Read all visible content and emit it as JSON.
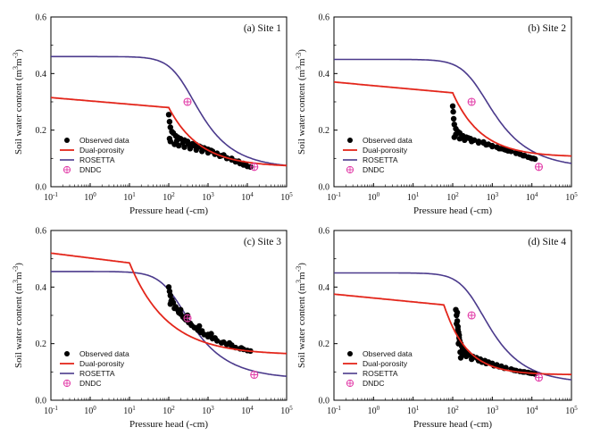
{
  "chart_data": [
    {
      "type": "scatter",
      "title": "(a) Site 1",
      "xlabel": "Pressure head (-cm)",
      "ylabel_main": "Soil water content (m",
      "ylabel_sup1": "3",
      "ylabel_mid": "m",
      "ylabel_sup2": "-3",
      "ylabel_end": ")",
      "x_scale": "log",
      "x_tick_exponents": [
        -1,
        0,
        1,
        2,
        3,
        4,
        5
      ],
      "y_ticks": [
        "0.0",
        "0.2",
        "0.4",
        "0.6"
      ],
      "ylim": [
        0,
        0.6
      ],
      "legend_position": "bottom-left",
      "legend": [
        "Observed data",
        "Dual-porosity",
        "ROSETTA",
        "DNDC"
      ],
      "colors": {
        "observed": "#000000",
        "dual": "#e3261b",
        "rosetta": "#4b3a8c",
        "dndc": "#e23ca8"
      },
      "dual_porosity": {
        "theta_r": 0.07,
        "theta_s": 0.315,
        "break_head": 100,
        "decay": 0.55
      },
      "rosetta": {
        "theta_r": 0.065,
        "theta_s": 0.46,
        "alpha": 0.0045,
        "n": 1.6
      },
      "observed": [
        [
          100,
          0.255
        ],
        [
          105,
          0.23
        ],
        [
          110,
          0.21
        ],
        [
          120,
          0.195
        ],
        [
          130,
          0.19
        ],
        [
          150,
          0.18
        ],
        [
          170,
          0.175
        ],
        [
          200,
          0.17
        ],
        [
          250,
          0.165
        ],
        [
          300,
          0.16
        ],
        [
          400,
          0.152
        ],
        [
          500,
          0.148
        ],
        [
          600,
          0.143
        ],
        [
          800,
          0.137
        ],
        [
          1000,
          0.132
        ],
        [
          1300,
          0.125
        ],
        [
          1700,
          0.118
        ],
        [
          2200,
          0.11
        ],
        [
          3000,
          0.102
        ],
        [
          4000,
          0.095
        ],
        [
          5000,
          0.088
        ],
        [
          6500,
          0.082
        ],
        [
          8000,
          0.077
        ],
        [
          10000,
          0.072
        ],
        [
          12000,
          0.07
        ],
        [
          110,
          0.16
        ],
        [
          140,
          0.15
        ],
        [
          180,
          0.145
        ],
        [
          250,
          0.14
        ],
        [
          350,
          0.135
        ],
        [
          500,
          0.13
        ],
        [
          700,
          0.125
        ],
        [
          1000,
          0.12
        ],
        [
          1500,
          0.115
        ],
        [
          2000,
          0.108
        ],
        [
          3000,
          0.1
        ],
        [
          5000,
          0.09
        ],
        [
          8000,
          0.082
        ],
        [
          105,
          0.17
        ],
        [
          160,
          0.162
        ],
        [
          230,
          0.155
        ],
        [
          320,
          0.15
        ],
        [
          450,
          0.145
        ],
        [
          650,
          0.14
        ],
        [
          900,
          0.133
        ],
        [
          1200,
          0.128
        ],
        [
          2500,
          0.112
        ],
        [
          4000,
          0.1
        ],
        [
          6000,
          0.09
        ],
        [
          9000,
          0.08
        ]
      ],
      "dndc": [
        [
          300,
          0.3
        ],
        [
          15000,
          0.07
        ]
      ]
    },
    {
      "type": "scatter",
      "title": "(b) Site 2",
      "xlabel": "Pressure head (-cm)",
      "ylabel_main": "Soil water content (m",
      "ylabel_sup1": "3",
      "ylabel_mid": "m",
      "ylabel_sup2": "-3",
      "ylabel_end": ")",
      "x_scale": "log",
      "x_tick_exponents": [
        -1,
        0,
        1,
        2,
        3,
        4,
        5
      ],
      "y_ticks": [
        "0.0",
        "0.2",
        "0.4",
        "0.6"
      ],
      "ylim": [
        0,
        0.6
      ],
      "legend_position": "bottom-left",
      "legend": [
        "Observed data",
        "Dual-porosity",
        "ROSETTA",
        "DNDC"
      ],
      "colors": {
        "observed": "#000000",
        "dual": "#e3261b",
        "rosetta": "#4b3a8c",
        "dndc": "#e23ca8"
      },
      "dual_porosity": {
        "theta_r": 0.105,
        "theta_s": 0.37,
        "break_head": 100,
        "decay": 0.6
      },
      "rosetta": {
        "theta_r": 0.065,
        "theta_s": 0.45,
        "alpha": 0.0028,
        "n": 1.55
      },
      "observed": [
        [
          100,
          0.285
        ],
        [
          103,
          0.265
        ],
        [
          106,
          0.24
        ],
        [
          110,
          0.22
        ],
        [
          120,
          0.205
        ],
        [
          135,
          0.195
        ],
        [
          150,
          0.19
        ],
        [
          180,
          0.18
        ],
        [
          220,
          0.175
        ],
        [
          280,
          0.17
        ],
        [
          350,
          0.165
        ],
        [
          450,
          0.16
        ],
        [
          600,
          0.155
        ],
        [
          800,
          0.15
        ],
        [
          1000,
          0.145
        ],
        [
          1300,
          0.14
        ],
        [
          1700,
          0.135
        ],
        [
          2200,
          0.13
        ],
        [
          3000,
          0.125
        ],
        [
          4000,
          0.12
        ],
        [
          5000,
          0.115
        ],
        [
          6500,
          0.11
        ],
        [
          8000,
          0.105
        ],
        [
          10000,
          0.1
        ],
        [
          12000,
          0.098
        ],
        [
          110,
          0.175
        ],
        [
          150,
          0.17
        ],
        [
          200,
          0.165
        ],
        [
          300,
          0.16
        ],
        [
          450,
          0.155
        ],
        [
          700,
          0.148
        ],
        [
          1000,
          0.142
        ],
        [
          1500,
          0.135
        ],
        [
          2500,
          0.127
        ],
        [
          4000,
          0.118
        ],
        [
          6000,
          0.11
        ],
        [
          9000,
          0.103
        ],
        [
          120,
          0.185
        ],
        [
          250,
          0.172
        ],
        [
          600,
          0.158
        ],
        [
          2000,
          0.132
        ],
        [
          5000,
          0.116
        ],
        [
          11000,
          0.1
        ]
      ],
      "dndc": [
        [
          300,
          0.3
        ],
        [
          15000,
          0.07
        ]
      ]
    },
    {
      "type": "scatter",
      "title": "(c) Site 3",
      "xlabel": "Pressure head (-cm)",
      "ylabel_main": "Soil water content (m",
      "ylabel_sup1": "3",
      "ylabel_mid": "m",
      "ylabel_sup2": "-3",
      "ylabel_end": ")",
      "x_scale": "log",
      "x_tick_exponents": [
        -1,
        0,
        1,
        2,
        3,
        4,
        5
      ],
      "y_ticks": [
        "0.0",
        "0.2",
        "0.4",
        "0.6"
      ],
      "ylim": [
        0,
        0.6
      ],
      "legend_position": "bottom-left",
      "legend": [
        "Observed data",
        "Dual-porosity",
        "ROSETTA",
        "DNDC"
      ],
      "colors": {
        "observed": "#000000",
        "dual": "#e3261b",
        "rosetta": "#4b3a8c",
        "dndc": "#e23ca8"
      },
      "dual_porosity": {
        "theta_r": 0.16,
        "theta_s": 0.52,
        "break_head": 10,
        "decay": 0.45
      },
      "rosetta": {
        "theta_r": 0.075,
        "theta_s": 0.455,
        "alpha": 0.008,
        "n": 1.55
      },
      "observed": [
        [
          100,
          0.4
        ],
        [
          105,
          0.385
        ],
        [
          110,
          0.37
        ],
        [
          120,
          0.355
        ],
        [
          130,
          0.345
        ],
        [
          150,
          0.33
        ],
        [
          170,
          0.32
        ],
        [
          200,
          0.305
        ],
        [
          230,
          0.295
        ],
        [
          270,
          0.285
        ],
        [
          320,
          0.275
        ],
        [
          380,
          0.265
        ],
        [
          450,
          0.257
        ],
        [
          550,
          0.248
        ],
        [
          650,
          0.24
        ],
        [
          800,
          0.232
        ],
        [
          1000,
          0.225
        ],
        [
          1300,
          0.218
        ],
        [
          1700,
          0.21
        ],
        [
          2200,
          0.203
        ],
        [
          3000,
          0.197
        ],
        [
          4000,
          0.19
        ],
        [
          5000,
          0.186
        ],
        [
          6500,
          0.182
        ],
        [
          8000,
          0.18
        ],
        [
          10000,
          0.176
        ],
        [
          12000,
          0.174
        ],
        [
          110,
          0.34
        ],
        [
          140,
          0.325
        ],
        [
          180,
          0.31
        ],
        [
          250,
          0.29
        ],
        [
          350,
          0.272
        ],
        [
          500,
          0.255
        ],
        [
          700,
          0.245
        ],
        [
          1000,
          0.232
        ],
        [
          1500,
          0.22
        ],
        [
          2500,
          0.205
        ],
        [
          4000,
          0.195
        ],
        [
          7000,
          0.185
        ],
        [
          115,
          0.35
        ],
        [
          200,
          0.32
        ],
        [
          300,
          0.3
        ],
        [
          600,
          0.262
        ],
        [
          1200,
          0.235
        ],
        [
          3500,
          0.202
        ]
      ],
      "dndc": [
        [
          300,
          0.29
        ],
        [
          15000,
          0.09
        ]
      ]
    },
    {
      "type": "scatter",
      "title": "(d) Site 4",
      "xlabel": "Pressure head (-cm)",
      "ylabel_main": "Soil water content (m",
      "ylabel_sup1": "3",
      "ylabel_mid": "m",
      "ylabel_sup2": "-3",
      "ylabel_end": ")",
      "x_scale": "log",
      "x_tick_exponents": [
        -1,
        0,
        1,
        2,
        3,
        4,
        5
      ],
      "y_ticks": [
        "0.0",
        "0.2",
        "0.4",
        "0.6"
      ],
      "ylim": [
        0,
        0.6
      ],
      "legend_position": "bottom-left",
      "legend": [
        "Observed data",
        "Dual-porosity",
        "ROSETTA",
        "DNDC"
      ],
      "colors": {
        "observed": "#000000",
        "dual": "#e3261b",
        "rosetta": "#4b3a8c",
        "dndc": "#e23ca8"
      },
      "dual_porosity": {
        "theta_r": 0.09,
        "theta_s": 0.375,
        "break_head": 60,
        "decay": 0.75
      },
      "rosetta": {
        "theta_r": 0.06,
        "theta_s": 0.45,
        "alpha": 0.0032,
        "n": 1.6
      },
      "observed": [
        [
          120,
          0.32
        ],
        [
          125,
          0.3
        ],
        [
          130,
          0.28
        ],
        [
          135,
          0.26
        ],
        [
          140,
          0.24
        ],
        [
          145,
          0.22
        ],
        [
          150,
          0.21
        ],
        [
          160,
          0.2
        ],
        [
          170,
          0.19
        ],
        [
          180,
          0.18
        ],
        [
          200,
          0.175
        ],
        [
          230,
          0.17
        ],
        [
          270,
          0.16
        ],
        [
          320,
          0.155
        ],
        [
          400,
          0.15
        ],
        [
          500,
          0.145
        ],
        [
          650,
          0.14
        ],
        [
          800,
          0.135
        ],
        [
          1000,
          0.13
        ],
        [
          1300,
          0.125
        ],
        [
          1700,
          0.12
        ],
        [
          2200,
          0.115
        ],
        [
          3000,
          0.11
        ],
        [
          4000,
          0.105
        ],
        [
          5000,
          0.102
        ],
        [
          6500,
          0.1
        ],
        [
          8000,
          0.098
        ],
        [
          10000,
          0.095
        ],
        [
          12000,
          0.093
        ],
        [
          125,
          0.27
        ],
        [
          135,
          0.25
        ],
        [
          145,
          0.23
        ],
        [
          155,
          0.17
        ],
        [
          180,
          0.16
        ],
        [
          220,
          0.155
        ],
        [
          300,
          0.145
        ],
        [
          450,
          0.14
        ],
        [
          700,
          0.13
        ],
        [
          1100,
          0.122
        ],
        [
          2000,
          0.113
        ],
        [
          3500,
          0.106
        ],
        [
          6000,
          0.1
        ],
        [
          130,
          0.31
        ],
        [
          140,
          0.2
        ],
        [
          160,
          0.15
        ],
        [
          250,
          0.165
        ],
        [
          550,
          0.135
        ],
        [
          1500,
          0.118
        ],
        [
          9000,
          0.096
        ]
      ],
      "dndc": [
        [
          300,
          0.3
        ],
        [
          15000,
          0.08
        ]
      ]
    }
  ]
}
